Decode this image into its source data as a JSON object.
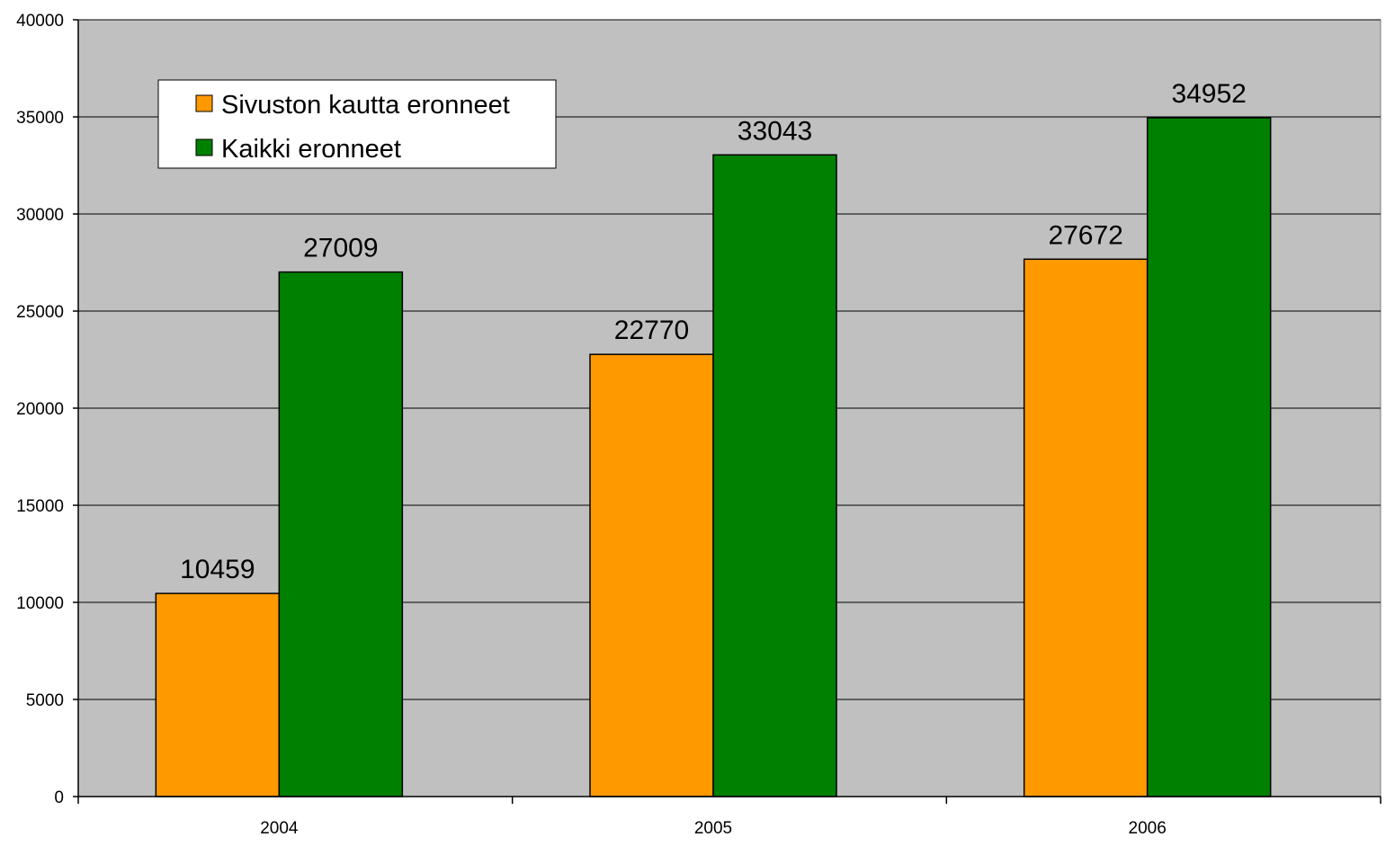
{
  "chart_data": {
    "type": "bar",
    "categories": [
      "2004",
      "2005",
      "2006"
    ],
    "series": [
      {
        "name": "Sivuston kautta eronneet",
        "color": "#ff9900",
        "values": [
          10459,
          22770,
          27672
        ]
      },
      {
        "name": "Kaikki eronneet",
        "color": "#008000",
        "values": [
          27009,
          33043,
          34952
        ]
      }
    ],
    "ylim": [
      0,
      40000
    ],
    "yticks": [
      "0",
      "5000",
      "10000",
      "15000",
      "20000",
      "25000",
      "30000",
      "35000",
      "40000"
    ],
    "grid": true,
    "legend_position": "top-left",
    "plot_background": "#c0c0c0",
    "title": "",
    "xlabel": "",
    "ylabel": ""
  }
}
